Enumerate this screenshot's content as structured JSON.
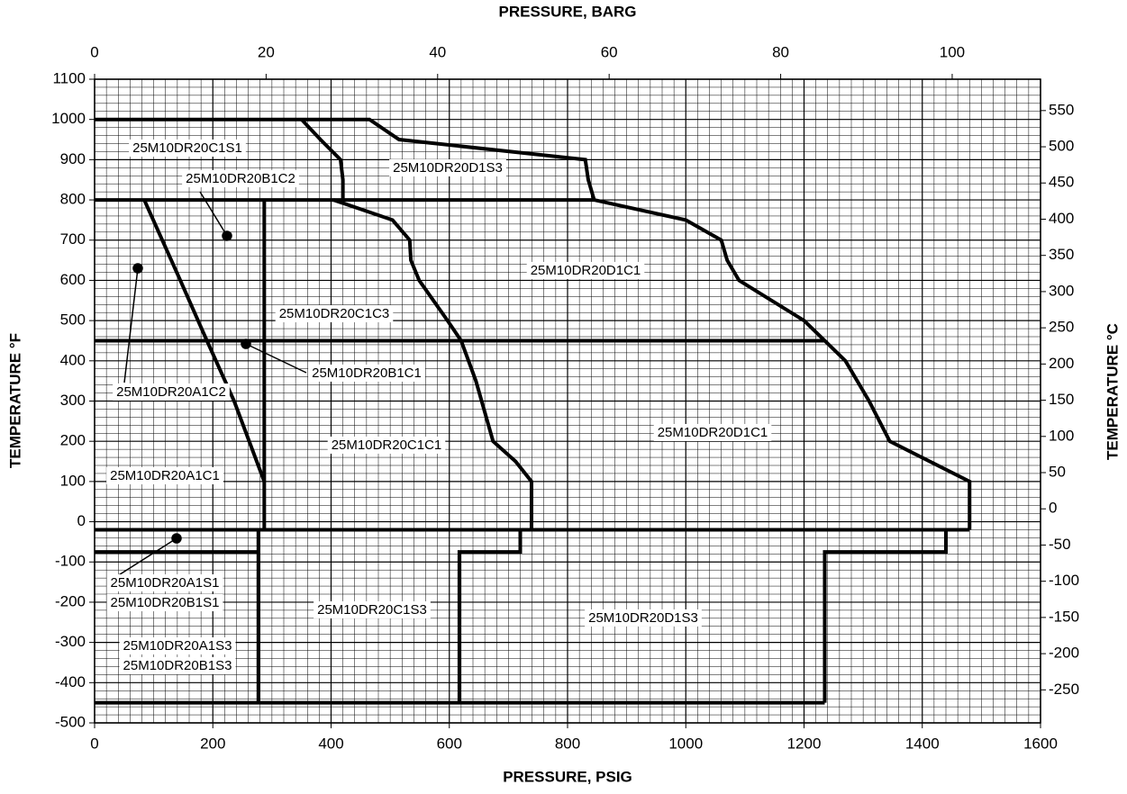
{
  "chart_data": {
    "type": "line",
    "x_label": "PRESSURE, PSIG",
    "x2_label": "PRESSURE, BARG",
    "y_label": "TEMPERATURE °F",
    "y2_label": "TEMPERATURE °C",
    "xlim": [
      0,
      1600
    ],
    "xticks": [
      0,
      200,
      400,
      600,
      800,
      1000,
      1200,
      1400,
      1600
    ],
    "x2lim": [
      0,
      110.3
    ],
    "x2ticks": [
      0,
      20,
      40,
      60,
      80,
      100
    ],
    "ylim": [
      -500,
      1100
    ],
    "yticks": [
      -500,
      -400,
      -300,
      -200,
      -100,
      0,
      100,
      200,
      300,
      400,
      500,
      600,
      700,
      800,
      900,
      1000,
      1100
    ],
    "y2lim": [
      -295.6,
      593.3
    ],
    "y2ticks": [
      -250,
      -200,
      -150,
      -100,
      -50,
      0,
      50,
      100,
      150,
      200,
      250,
      300,
      350,
      400,
      450,
      500,
      550
    ],
    "grid": true,
    "minor_grid_step": {
      "x": 20,
      "y": 20
    },
    "color": "#000000",
    "series": [
      {
        "x": [
          0,
          465,
          515,
          830,
          835,
          845,
          1000,
          1060,
          1070,
          1090,
          1200,
          1235,
          1270,
          1310,
          1345,
          1480,
          1480
        ],
        "y": [
          1000,
          1000,
          950,
          900,
          850,
          800,
          750,
          700,
          650,
          600,
          500,
          450,
          400,
          300,
          200,
          100,
          -20
        ]
      },
      {
        "x": [
          350,
          382,
          416,
          420,
          420
        ],
        "y": [
          1000,
          950,
          900,
          850,
          800
        ]
      },
      {
        "x": [
          404,
          504,
          533,
          535,
          549,
          597,
          620,
          645,
          674,
          712,
          739,
          739
        ],
        "y": [
          800,
          750,
          700,
          650,
          600,
          500,
          450,
          350,
          200,
          150,
          100,
          -20
        ]
      },
      {
        "x": [
          0,
          845
        ],
        "y": [
          800,
          800
        ]
      },
      {
        "x": [
          0,
          1235
        ],
        "y": [
          450,
          450
        ]
      },
      {
        "x": [
          0,
          1480
        ],
        "y": [
          -20,
          -20
        ]
      },
      {
        "x": [
          84,
          145,
          190,
          236,
          287
        ],
        "y": [
          800,
          600,
          450,
          300,
          100
        ]
      },
      {
        "x": [
          287,
          287
        ],
        "y": [
          800,
          -20
        ]
      },
      {
        "x": [
          0,
          277
        ],
        "y": [
          -75,
          -75
        ]
      },
      {
        "x": [
          277,
          277
        ],
        "y": [
          -20,
          -450
        ]
      },
      {
        "x": [
          0,
          1235
        ],
        "y": [
          -450,
          -450
        ]
      },
      {
        "x": [
          720,
          720,
          617,
          617
        ],
        "y": [
          -20,
          -75,
          -75,
          -450
        ]
      },
      {
        "x": [
          1440,
          1440,
          1235,
          1235
        ],
        "y": [
          -20,
          -75,
          -75,
          -450
        ]
      }
    ],
    "annotations": [
      "25M10DR20C1S1",
      "25M10DR20B1C2",
      "25M10DR20D1S3",
      "25M10DR20D1C1",
      "25M10DR20C1C3",
      "25M10DR20B1C1",
      "25M10DR20A1C2",
      "25M10DR20C1C1",
      "25M10DR20D1C1",
      "25M10DR20A1C1",
      "25M10DR20A1S1",
      "25M10DR20B1S1",
      "25M10DR20C1S3",
      "25M10DR20D1S3",
      "25M10DR20A1S3",
      "25M10DR20B1S3"
    ]
  }
}
